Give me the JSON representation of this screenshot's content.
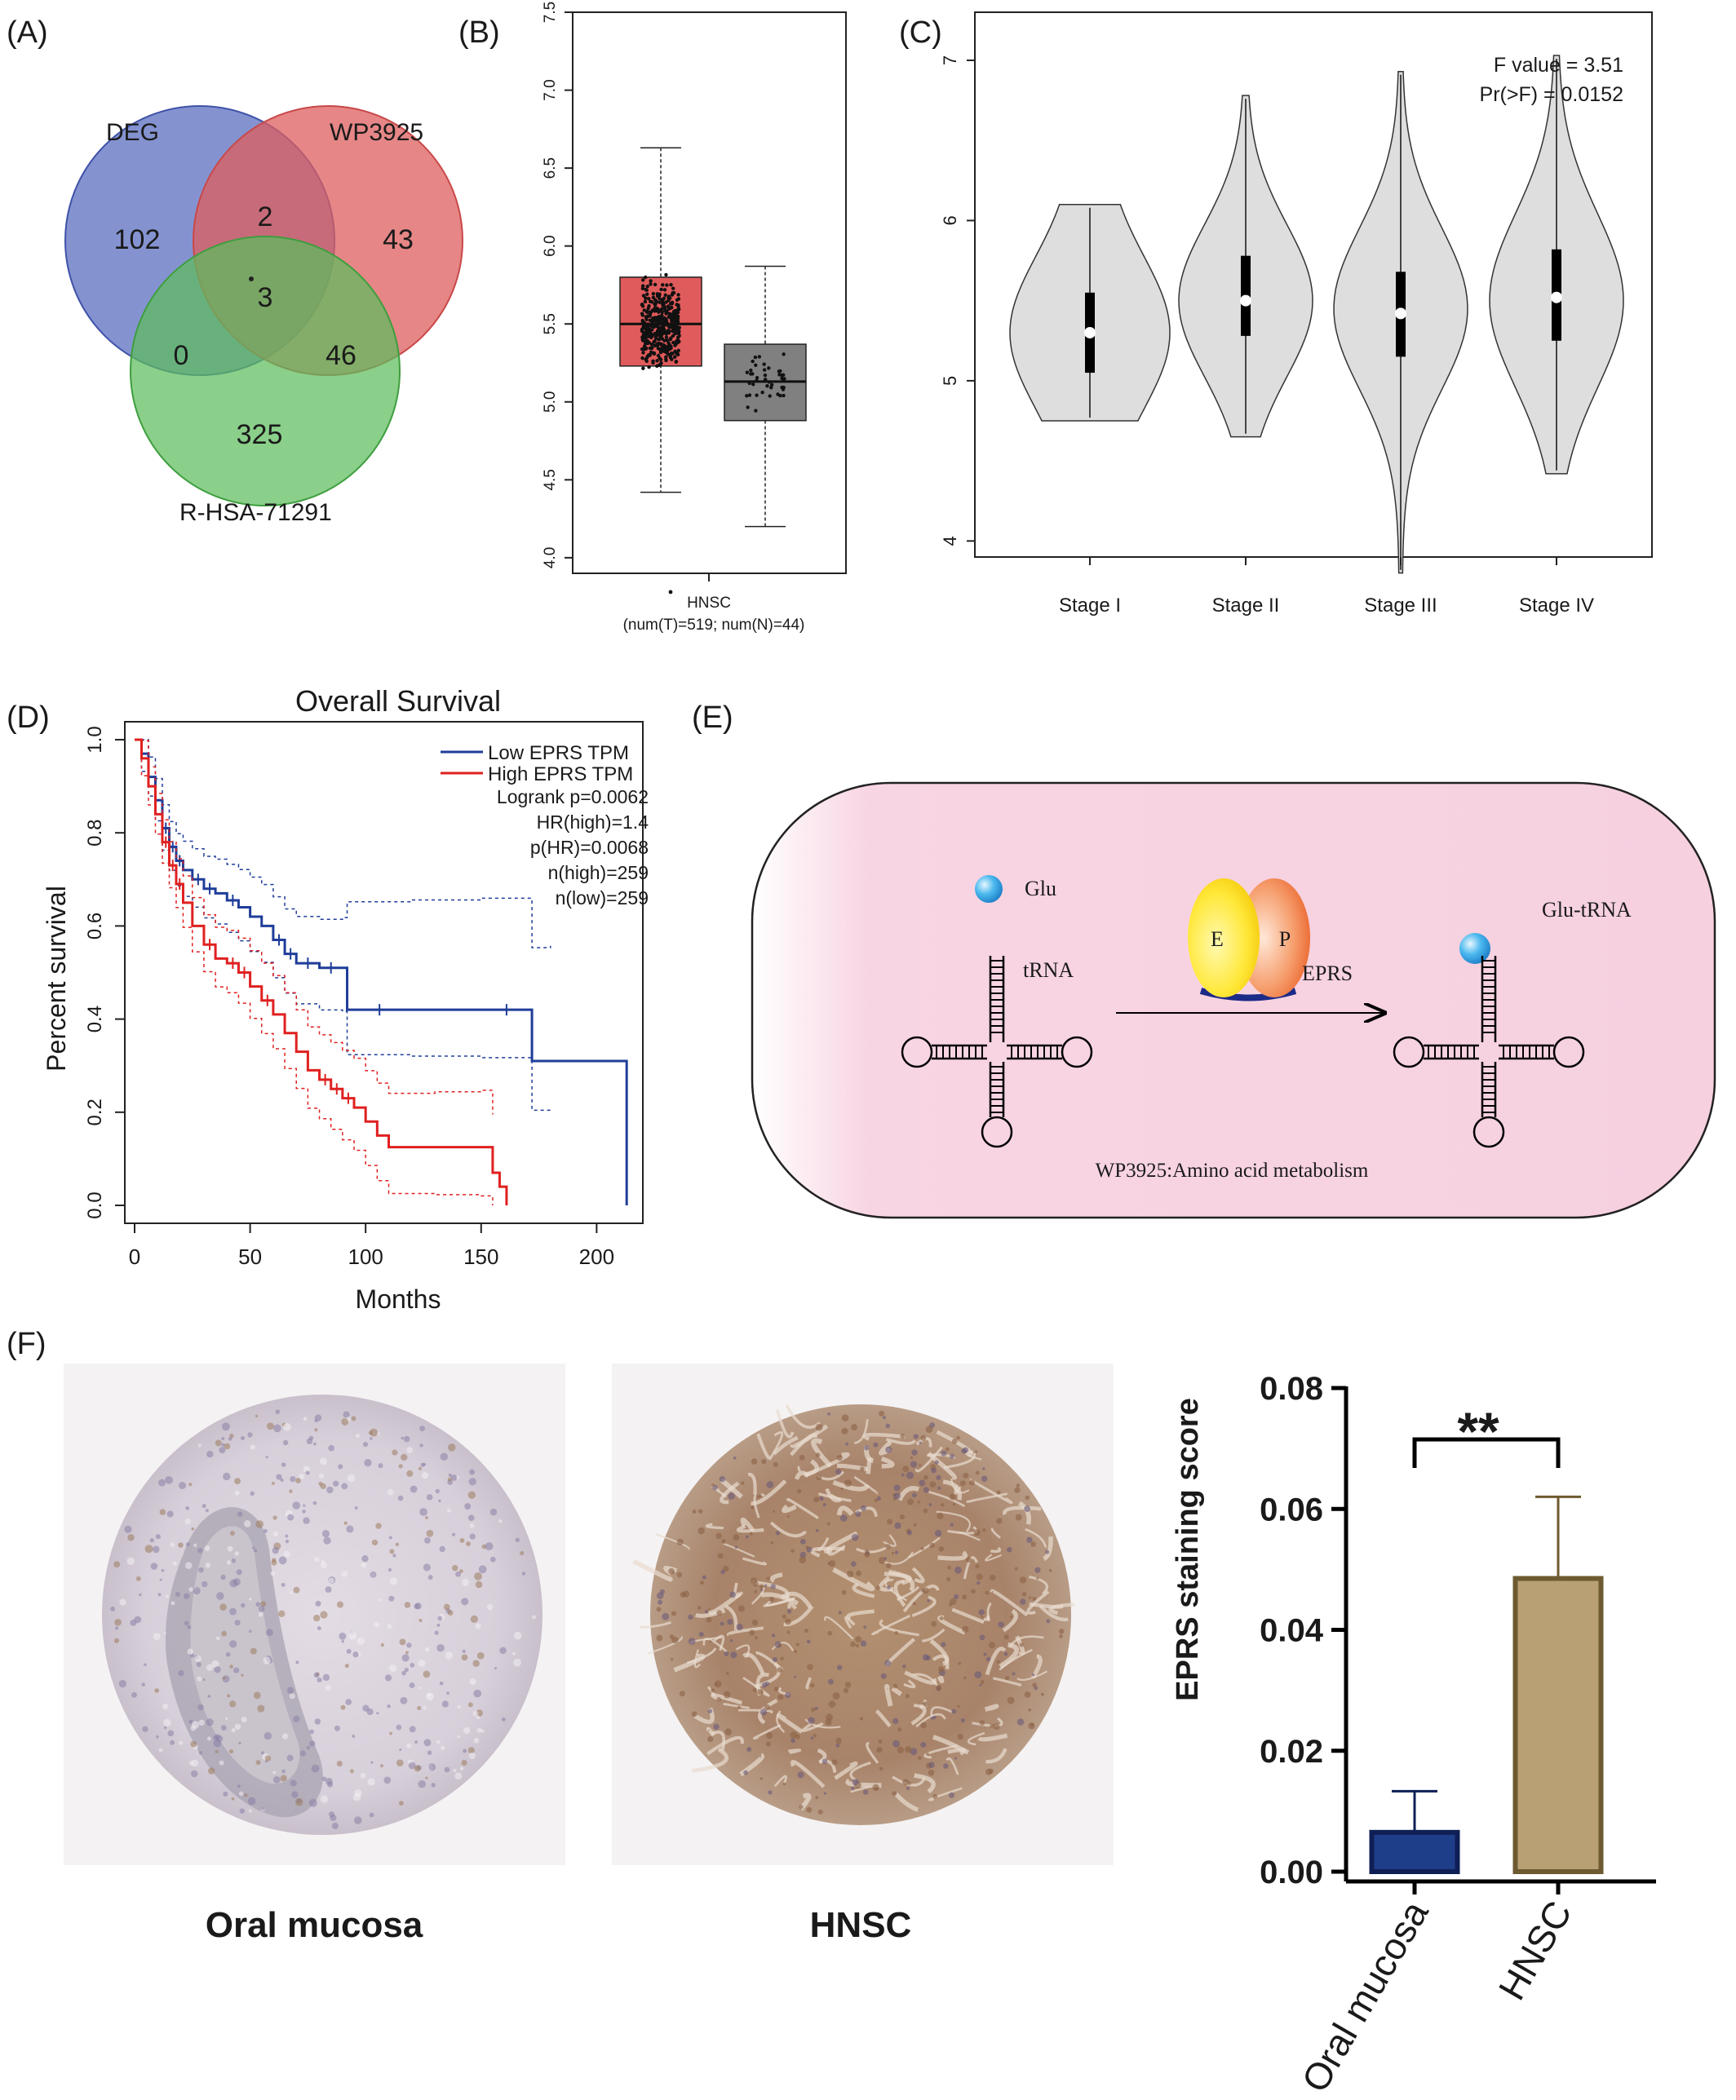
{
  "panel_labels": [
    "(A)",
    "(B)",
    "(C)",
    "(D)",
    "(E)",
    "(F)"
  ],
  "venn": {
    "sets": [
      {
        "name": "DEG",
        "color": "#5b6fc0"
      },
      {
        "name": "WP3925",
        "color": "#dd5e5e"
      },
      {
        "name": "R-HSA-71291",
        "color": "#5dbd5d"
      }
    ],
    "regions": {
      "deg_only": "102",
      "deg_wp": "2",
      "wp_only": "43",
      "center": "3",
      "deg_rhsa": "0",
      "wp_rhsa": "46",
      "rhsa_only": "325"
    }
  },
  "chart_data": [
    {
      "panel": "B",
      "type": "box",
      "ylim": [
        3.9,
        7.5
      ],
      "yticks": [
        "4.0",
        "4.5",
        "5.0",
        "5.5",
        "6.0",
        "6.5",
        "7.0",
        "7.5"
      ],
      "xlabel": "HNSC",
      "xlabel_sub": "(num(T)=519; num(N)=44)",
      "series": [
        {
          "group": "T",
          "color": "#e05b5b",
          "whisker_low": 4.42,
          "q1": 5.23,
          "median": 5.5,
          "q3": 5.8,
          "whisker_high": 6.63,
          "n": 519
        },
        {
          "group": "N",
          "color": "#808080",
          "whisker_low": 4.2,
          "q1": 4.88,
          "median": 5.13,
          "q3": 5.37,
          "whisker_high": 5.87,
          "n": 44
        }
      ]
    },
    {
      "panel": "C",
      "type": "violin",
      "ylim": [
        3.9,
        7.3
      ],
      "yticks": [
        "4",
        "5",
        "6",
        "7"
      ],
      "categories": [
        "Stage I",
        "Stage II",
        "Stage III",
        "Stage IV"
      ],
      "annotations": {
        "f_value_label": "F value = 3.51",
        "pr_label": "Pr(>F) = 0.0152"
      },
      "series": [
        {
          "min": 4.75,
          "max": 6.1,
          "q1": 5.05,
          "median": 5.3,
          "q3": 5.55,
          "mode": 5.3
        },
        {
          "min": 4.65,
          "max": 6.78,
          "q1": 5.28,
          "median": 5.5,
          "q3": 5.78,
          "mode": 5.5
        },
        {
          "min": 3.8,
          "max": 6.93,
          "q1": 5.15,
          "median": 5.42,
          "q3": 5.68,
          "mode": 5.45
        },
        {
          "min": 4.42,
          "max": 7.03,
          "q1": 5.25,
          "median": 5.52,
          "q3": 5.82,
          "mode": 5.5
        }
      ]
    },
    {
      "panel": "D",
      "type": "line",
      "title": "Overall Survival",
      "xlabel": "Months",
      "ylabel": "Percent survival",
      "xlim": [
        0,
        220
      ],
      "ylim": [
        0,
        1
      ],
      "xticks": [
        "0",
        "50",
        "100",
        "150",
        "200"
      ],
      "yticks": [
        "0.0",
        "0.2",
        "0.4",
        "0.6",
        "0.8",
        "1.0"
      ],
      "legend": [
        "Low EPRS TPM",
        "High EPRS TPM"
      ],
      "stats": [
        "Logrank p=0.0062",
        "HR(high)=1.4",
        "p(HR)=0.0068",
        "n(high)=259",
        "n(low)=259"
      ],
      "series": [
        {
          "name": "Low EPRS TPM",
          "color": "#1f3d99",
          "x": [
            0,
            3,
            6,
            9,
            12,
            15,
            18,
            21,
            25,
            30,
            35,
            40,
            45,
            50,
            55,
            60,
            65,
            70,
            80,
            90,
            92,
            120,
            150,
            172,
            180,
            213
          ],
          "y": [
            1.0,
            0.97,
            0.92,
            0.87,
            0.81,
            0.77,
            0.74,
            0.72,
            0.7,
            0.68,
            0.67,
            0.655,
            0.64,
            0.62,
            0.6,
            0.57,
            0.54,
            0.52,
            0.51,
            0.51,
            0.42,
            0.42,
            0.42,
            0.31,
            0.31,
            0.0
          ]
        },
        {
          "name": "High EPRS TPM",
          "color": "#e02020",
          "x": [
            0,
            3,
            6,
            9,
            12,
            15,
            18,
            21,
            25,
            30,
            35,
            40,
            45,
            50,
            55,
            60,
            65,
            70,
            75,
            80,
            85,
            90,
            95,
            100,
            105,
            110,
            130,
            150,
            155,
            158,
            161
          ],
          "y": [
            1.0,
            0.96,
            0.9,
            0.84,
            0.78,
            0.73,
            0.69,
            0.65,
            0.6,
            0.56,
            0.53,
            0.52,
            0.5,
            0.47,
            0.44,
            0.41,
            0.37,
            0.33,
            0.29,
            0.27,
            0.25,
            0.23,
            0.21,
            0.18,
            0.15,
            0.125,
            0.125,
            0.125,
            0.07,
            0.04,
            0.0
          ]
        }
      ]
    },
    {
      "panel": "F",
      "type": "bar",
      "categories": [
        "Oral mucosa",
        "HNSC"
      ],
      "values": [
        0.0065,
        0.0485
      ],
      "errors": [
        0.0068,
        0.0135
      ],
      "colors": [
        "#1f3e8a",
        "#b8a074"
      ],
      "edge_colors": [
        "#0f1f55",
        "#6e5a30"
      ],
      "ylabel": "EPRS  staining score",
      "ylim": [
        0,
        0.08
      ],
      "yticks": [
        "0.00",
        "0.02",
        "0.04",
        "0.06",
        "0.08"
      ],
      "significance": "**"
    }
  ],
  "diagram": {
    "glu_label": "Glu",
    "trna_label": "tRNA",
    "enzyme_e": "E",
    "enzyme_p": "P",
    "eprs_label": "EPRS",
    "product_label": "Glu-tRNA",
    "pathway_label": "WP3925:Amino acid metabolism"
  },
  "ihc": {
    "left_caption": "Oral mucosa",
    "right_caption": "HNSC"
  }
}
